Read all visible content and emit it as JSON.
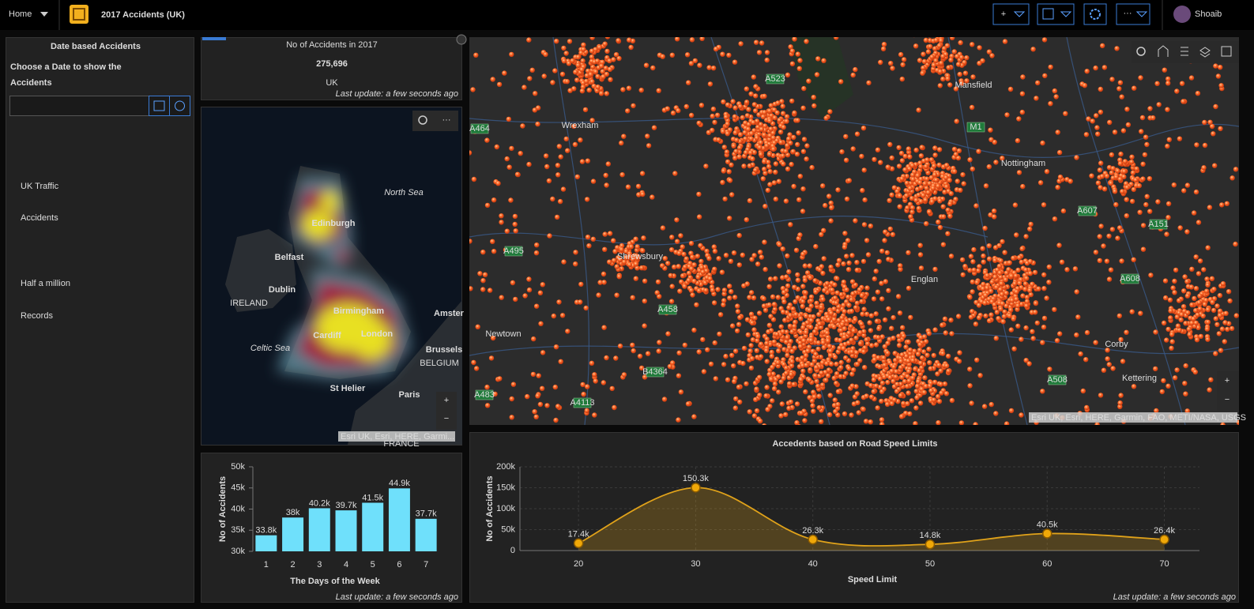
{
  "header": {
    "home": "Home",
    "title": "2017 Accidents (UK)",
    "user": "Shoaib"
  },
  "sidebar": {
    "heading": "Date based Accidents",
    "prompt": [
      "Choose a Date to show the",
      "Accidents"
    ],
    "note": [
      "UK Traffic",
      "Accidents",
      "Half a million",
      "Records"
    ]
  },
  "indicator": {
    "title": "No of Accidents in 2017",
    "value": "275,696",
    "subtitle": "UK",
    "updated": "Last update: a few seconds ago"
  },
  "maps": {
    "heat": {
      "labels": [
        "North Sea",
        "Edinburgh",
        "Belfast",
        "Dublin",
        "IRELAND",
        "Birmingham",
        "London",
        "Cardiff",
        "Celtic Sea",
        "Brussels",
        "Amster",
        "BELGIUM",
        "St Helier",
        "Paris",
        "FRANCE"
      ],
      "attribution": "Esri UK, Esri, HERE, Garmi..."
    },
    "main": {
      "labels": [
        "Wrexham",
        "Mansfield",
        "Nottingham",
        "Englan",
        "Newtown",
        "Corby",
        "Kettering",
        "Shrewsbury"
      ],
      "roads": [
        "A464",
        "A523",
        "M1",
        "A607",
        "A495",
        "A458",
        "A608",
        "A483",
        "A4113",
        "B4364",
        "A508",
        "A151"
      ],
      "attribution": "Esri UK, Esri, HERE, Garmin, FAO, METI/NASA, USGS"
    }
  },
  "chart_data": [
    {
      "type": "bar",
      "x_label": "The Days of the Week",
      "y_label": "No of Accidents",
      "categories": [
        "1",
        "2",
        "3",
        "4",
        "5",
        "6",
        "7"
      ],
      "values": [
        33800,
        38000,
        40200,
        39700,
        41500,
        44900,
        37700
      ],
      "value_labels": [
        "33.8k",
        "38k",
        "40.2k",
        "39.7k",
        "41.5k",
        "44.9k",
        "37.7k"
      ],
      "color": "#6fe0fb",
      "ylim": [
        30000,
        50000
      ],
      "yticks": [
        {
          "value": 30000,
          "label": "30k"
        },
        {
          "value": 35000,
          "label": "35k"
        },
        {
          "value": 40000,
          "label": "40k"
        },
        {
          "value": 45000,
          "label": "45k"
        },
        {
          "value": 50000,
          "label": "50k"
        }
      ],
      "grid": false,
      "footer": "Last update: a few seconds ago"
    },
    {
      "type": "line",
      "title": "Accedents based on Road Speed Limits",
      "x_label": "Speed Limit",
      "y_label": "No of Accidents",
      "x": [
        20,
        30,
        40,
        50,
        60,
        70
      ],
      "values": [
        17400,
        150300,
        26300,
        14800,
        40500,
        26400
      ],
      "value_labels": [
        "17.4k",
        "150.3k",
        "26.3k",
        "14.8k",
        "40.5k",
        "26.4k"
      ],
      "color": "#e0a21a",
      "xlim": [
        15,
        73
      ],
      "xticks": [
        20,
        30,
        40,
        50,
        60,
        70
      ],
      "ylim": [
        0,
        200000
      ],
      "yticks": [
        0,
        {
          "value": 50000,
          "label": "50k"
        },
        {
          "value": 100000,
          "label": "100k"
        },
        {
          "value": 150000,
          "label": "150k"
        },
        {
          "value": 200000,
          "label": "200k"
        }
      ],
      "grid": true,
      "footer": "Last update: a few seconds ago"
    }
  ]
}
